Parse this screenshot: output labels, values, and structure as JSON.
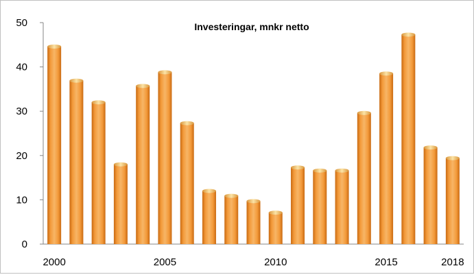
{
  "chart_data": {
    "type": "bar",
    "title": "Investeringar, mnkr netto",
    "xlabel": "",
    "ylabel": "",
    "categories": [
      "2000",
      "2001",
      "2002",
      "2003",
      "2004",
      "2005",
      "2006",
      "2007",
      "2008",
      "2009",
      "2010",
      "2011",
      "2012",
      "2013",
      "2014",
      "2015",
      "2016",
      "2017",
      "2018"
    ],
    "values": [
      44.6,
      36.9,
      32.0,
      18.0,
      35.7,
      38.8,
      27.3,
      12.0,
      10.9,
      9.7,
      7.1,
      17.3,
      16.6,
      16.6,
      29.6,
      38.5,
      47.3,
      21.8,
      19.4
    ],
    "x_tick_labels": [
      "2000",
      "2005",
      "2010",
      "2015",
      "2018"
    ],
    "y_tick_labels": [
      "0",
      "10",
      "20",
      "30",
      "40",
      "50"
    ],
    "ylim": [
      0,
      50
    ],
    "grid": false,
    "legend": "none",
    "bar_color": "#F0922E",
    "bar_cap_color": "#F7C56A"
  }
}
